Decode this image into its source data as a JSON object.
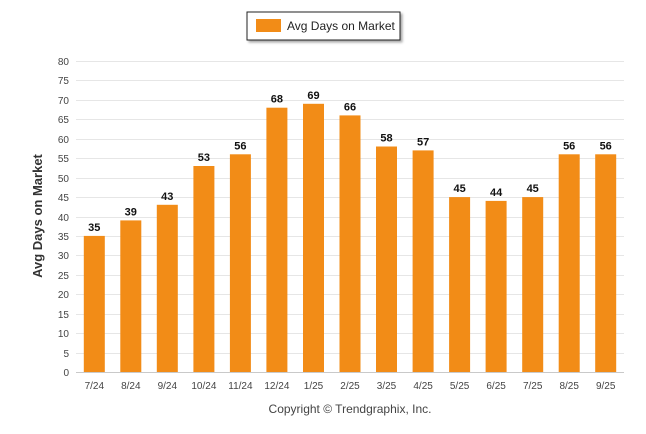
{
  "chart_data": {
    "type": "bar",
    "categories": [
      "7/24",
      "8/24",
      "9/24",
      "10/24",
      "11/24",
      "12/24",
      "1/25",
      "2/25",
      "3/25",
      "4/25",
      "5/25",
      "6/25",
      "7/25",
      "8/25",
      "9/25"
    ],
    "series": [
      {
        "name": "Avg Days on Market",
        "color": "#f28c17",
        "values": [
          35,
          39,
          43,
          53,
          56,
          68,
          69,
          66,
          58,
          57,
          45,
          44,
          45,
          56,
          56
        ]
      }
    ],
    "ylabel": "Avg Days on Market",
    "ylim": [
      0,
      80
    ],
    "yticks": [
      0,
      5,
      10,
      15,
      20,
      25,
      30,
      35,
      40,
      45,
      50,
      55,
      60,
      65,
      70,
      75,
      80
    ],
    "grid": true,
    "legend_position": "top-center",
    "data_labels": true
  },
  "footer": {
    "copyright": "Copyright © Trendgraphix, Inc."
  }
}
